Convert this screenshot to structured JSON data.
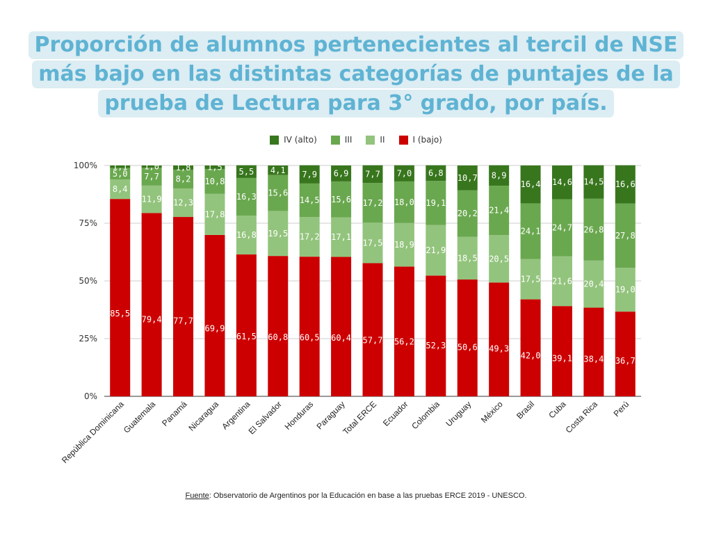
{
  "title_lines": [
    "Proporción de alumnos pertenecientes al tercil de NSE",
    "más bajo en las distintas categorías de puntajes de la",
    "prueba de Lectura para 3° grado, por país."
  ],
  "source": {
    "label": "Fuente",
    "text": ": Observatorio de Argentinos por la Educación en base a las pruebas ERCE 2019 - UNESCO."
  },
  "chart_data": {
    "type": "bar",
    "stacked": true,
    "orientation": "vertical",
    "categories": [
      "República Dominicana",
      "Guatemala",
      "Panamá",
      "Nicaragua",
      "Argentina",
      "El Salvador",
      "Honduras",
      "Paraguay",
      "Total ERCE",
      "Ecuador",
      "Colombia",
      "Uruguay",
      "México",
      "Brasil",
      "Cuba",
      "Costa Rica",
      "Perú"
    ],
    "series": [
      {
        "name": "I (bajo)",
        "color": "#cc0000",
        "values": [
          85.5,
          79.4,
          77.7,
          69.9,
          61.5,
          60.8,
          60.5,
          60.4,
          57.7,
          56.2,
          52.3,
          50.6,
          49.3,
          42.0,
          39.1,
          38.4,
          36.7
        ]
      },
      {
        "name": "II",
        "color": "#93c47d",
        "values": [
          8.4,
          11.9,
          12.3,
          17.8,
          16.8,
          19.5,
          17.2,
          17.1,
          17.5,
          18.9,
          21.9,
          18.5,
          20.5,
          17.5,
          21.6,
          20.4,
          19.0
        ]
      },
      {
        "name": "III",
        "color": "#6aa84f",
        "values": [
          5.0,
          7.7,
          8.2,
          10.8,
          16.3,
          15.6,
          14.5,
          15.6,
          17.2,
          18.0,
          19.1,
          20.2,
          21.4,
          24.1,
          24.7,
          26.8,
          27.8
        ]
      },
      {
        "name": "IV (alto)",
        "color": "#38761d",
        "values": [
          1.1,
          1.0,
          1.8,
          1.5,
          5.5,
          4.1,
          7.9,
          6.9,
          7.7,
          7.0,
          6.8,
          10.7,
          8.9,
          16.4,
          14.6,
          14.5,
          16.6
        ]
      }
    ],
    "value_labels": [
      [
        "85,5",
        "79,4",
        "77,7",
        "69,9",
        "61,5",
        "60,8",
        "60,5",
        "60,4",
        "57,7",
        "56,2",
        "52,3",
        "50,6",
        "49,3",
        "42,0",
        "39,1",
        "38,4",
        "36,7"
      ],
      [
        "8,4",
        "11,9",
        "12,3",
        "17,8",
        "16,8",
        "19,5",
        "17,2",
        "17,1",
        "17,5",
        "18,9",
        "21,9",
        "18,5",
        "20,5",
        "17,5",
        "21,6",
        "20,4",
        "19,0"
      ],
      [
        "5,0",
        "7,7",
        "8,2",
        "10,8",
        "16,3",
        "15,6",
        "14,5",
        "15,6",
        "17,2",
        "18,0",
        "19,1",
        "20,2",
        "21,4",
        "24,1",
        "24,7",
        "26,8",
        "27,8"
      ],
      [
        "1,1",
        "1,0",
        "1,8",
        "1,5",
        "5,5",
        "4,1",
        "7,9",
        "6,9",
        "7,7",
        "7,0",
        "6,8",
        "10,7",
        "8,9",
        "16,4",
        "14,6",
        "14,5",
        "16,6"
      ]
    ],
    "legend": [
      "IV (alto)",
      "III",
      "II",
      "I (bajo)"
    ],
    "legend_position": "top-center",
    "y_ticks": [
      "0%",
      "25%",
      "50%",
      "75%",
      "100%"
    ],
    "ylim": [
      0,
      100
    ],
    "grid": true,
    "title": "",
    "xlabel": "",
    "ylabel": ""
  }
}
